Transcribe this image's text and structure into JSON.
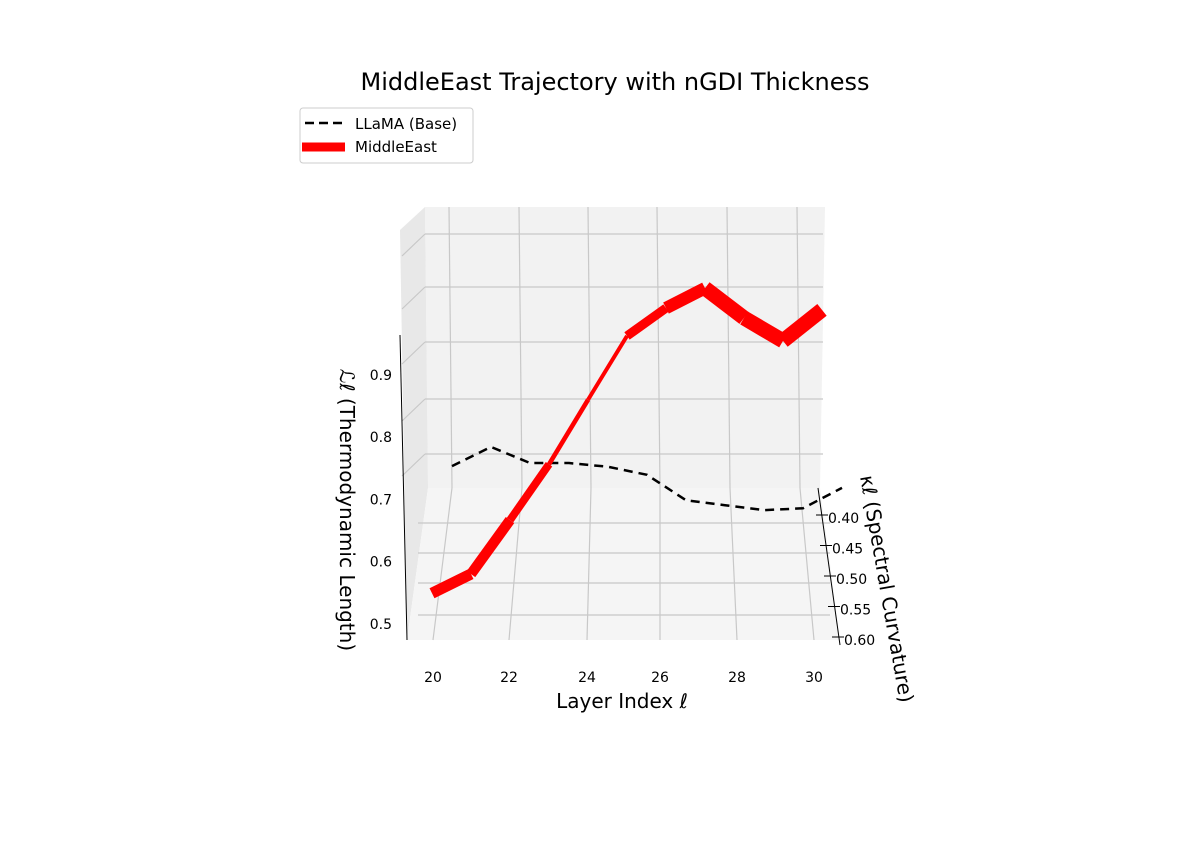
{
  "chart_data": {
    "type": "line",
    "projection": "3d",
    "title": "MiddleEast Trajectory with nGDI Thickness",
    "xlabel": "Layer Index ℓ",
    "ylabel": "κℓ (Spectral Curvature)",
    "zlabel": "ℒℓ (Thermodynamic Length)",
    "x_ticks": [
      "20",
      "22",
      "24",
      "26",
      "28",
      "30"
    ],
    "y_ticks": [
      "0.40",
      "0.45",
      "0.50",
      "0.55",
      "0.60"
    ],
    "z_ticks": [
      "0.5",
      "0.6",
      "0.7",
      "0.8",
      "0.9"
    ],
    "grid": true,
    "legend_position": "top-left",
    "legend": [
      "LLaMA (Base)",
      "MiddleEast"
    ],
    "x": [
      20,
      21,
      22,
      23,
      24,
      25,
      26,
      27,
      28,
      29,
      30
    ],
    "series": [
      {
        "name": "LLaMA (Base)",
        "style": "dashed",
        "color": "#000000",
        "z": [
          0.753,
          0.784,
          0.758,
          0.758,
          0.752,
          0.739,
          0.698,
          0.69,
          0.682,
          0.685,
          0.718
        ]
      },
      {
        "name": "MiddleEast",
        "style": "solid",
        "color": "#ff0000",
        "z": [
          0.548,
          0.579,
          0.666,
          0.756,
          0.86,
          0.963,
          1.008,
          1.04,
          0.992,
          0.955,
          1.005
        ],
        "ngdi_thickness": [
          0.7,
          0.65,
          0.45,
          0.2,
          0.15,
          0.55,
          0.8,
          1.0,
          1.0,
          1.0
        ]
      }
    ]
  }
}
